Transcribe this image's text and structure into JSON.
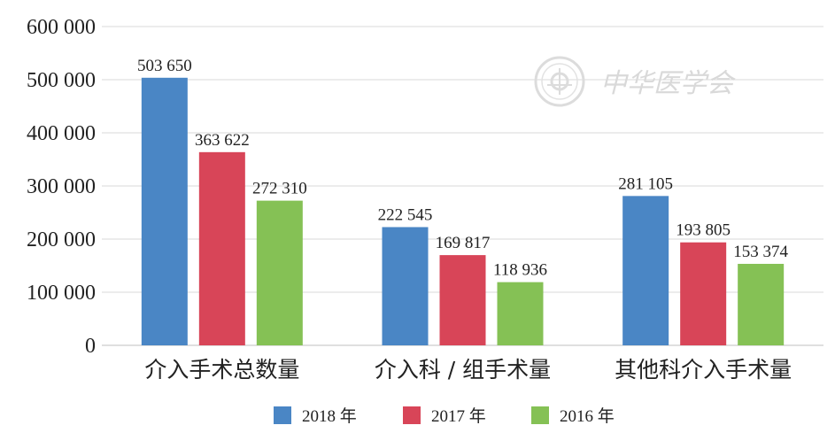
{
  "chart_data": {
    "type": "bar",
    "title": "",
    "xlabel": "",
    "ylabel": "",
    "ylim": [
      0,
      600000
    ],
    "yticks": [
      0,
      100000,
      200000,
      300000,
      400000,
      500000,
      600000
    ],
    "ytick_labels": [
      "0",
      "100 000",
      "200 000",
      "300 000",
      "400 000",
      "500 000",
      "600 000"
    ],
    "grid": true,
    "legend_position": "bottom",
    "categories": [
      "介入手术总数量",
      "介入科 / 组手术量",
      "其他科介入手术量"
    ],
    "series": [
      {
        "name": "2018 年",
        "color": "#4a86c5",
        "values": [
          503650,
          222545,
          281105
        ],
        "labels": [
          "503 650",
          "222 545",
          "281 105"
        ]
      },
      {
        "name": "2017 年",
        "color": "#d84558",
        "values": [
          363622,
          169817,
          193805
        ],
        "labels": [
          "363 622",
          "169 817",
          "193 805"
        ]
      },
      {
        "name": "2016 年",
        "color": "#85c155",
        "values": [
          272310,
          118936,
          153374
        ],
        "labels": [
          "272 310",
          "118 936",
          "153 374"
        ]
      }
    ]
  },
  "watermark": {
    "text": "中华医学会",
    "color": "#d9d9d9"
  }
}
